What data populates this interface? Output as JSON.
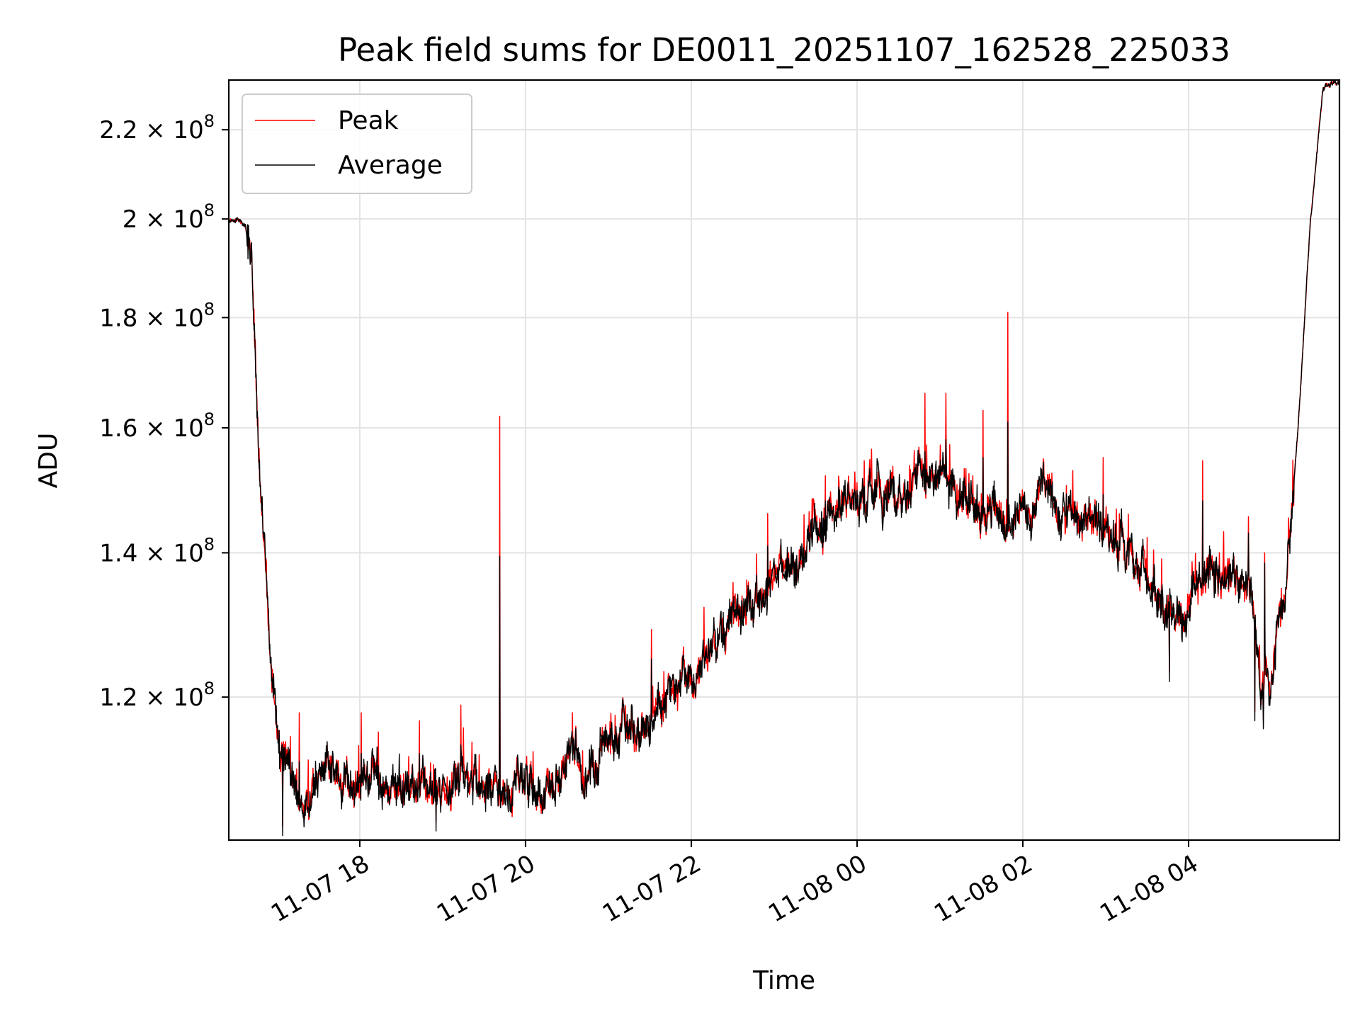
{
  "chart_data": {
    "type": "line",
    "title": "Peak field sums for DE0011_20251107_162528_225033",
    "xlabel": "Time",
    "ylabel": "ADU",
    "yscale": "log",
    "grid": true,
    "legend_position": "upper-left",
    "x_unit": "hours since 11-07 16:25",
    "xlim": [
      0,
      13.4
    ],
    "ylim": [
      103000000,
      232000000
    ],
    "x_ticks": [
      {
        "value": 1.58,
        "label": "11-07 18"
      },
      {
        "value": 3.58,
        "label": "11-07 20"
      },
      {
        "value": 5.58,
        "label": "11-07 22"
      },
      {
        "value": 7.58,
        "label": "11-08 00"
      },
      {
        "value": 9.58,
        "label": "11-08 02"
      },
      {
        "value": 11.58,
        "label": "11-08 04"
      }
    ],
    "y_ticks": [
      {
        "value": 120000000,
        "mantissa": "1.2",
        "exp": "8"
      },
      {
        "value": 140000000,
        "mantissa": "1.4",
        "exp": "8"
      },
      {
        "value": 160000000,
        "mantissa": "1.6",
        "exp": "8"
      },
      {
        "value": 180000000,
        "mantissa": "1.8",
        "exp": "8"
      },
      {
        "value": 200000000,
        "mantissa": "2",
        "exp": "8"
      },
      {
        "value": 220000000,
        "mantissa": "2.2",
        "exp": "8"
      }
    ],
    "times_symbol": "×",
    "base_label": "10",
    "series": [
      {
        "name": "Peak",
        "color": "#ff0000",
        "noise": 0.012,
        "spike_rate": 0.06,
        "spike_size": 0.045
      },
      {
        "name": "Average",
        "color": "#000000",
        "noise": 0.016,
        "spike_rate": 0.02,
        "spike_size": 0.02
      }
    ],
    "trend": {
      "x": [
        0,
        0.2,
        0.28,
        0.35,
        0.42,
        0.5,
        0.6,
        0.8,
        1.0,
        1.4,
        1.8,
        2.2,
        2.6,
        3.0,
        3.4,
        3.8,
        4.2,
        4.6,
        5.0,
        5.4,
        5.8,
        6.2,
        6.6,
        7.0,
        7.4,
        7.8,
        8.2,
        8.6,
        9.0,
        9.4,
        9.8,
        10.2,
        10.6,
        11.0,
        11.2,
        11.4,
        11.6,
        11.8,
        12.0,
        12.2,
        12.35,
        12.45,
        12.55,
        12.65,
        12.75,
        12.9,
        13.05,
        13.2,
        13.4
      ],
      "y": [
        200000000,
        199000000,
        188000000,
        158000000,
        140000000,
        125000000,
        113000000,
        109000000,
        110000000,
        110500000,
        109000000,
        109000000,
        108500000,
        108000000,
        108500000,
        109000000,
        111000000,
        114000000,
        118000000,
        122500000,
        127000000,
        131000000,
        136000000,
        143000000,
        147000000,
        148500000,
        149500000,
        151500000,
        149000000,
        147000000,
        146500000,
        145500000,
        143000000,
        140000000,
        132000000,
        130000000,
        133000000,
        137000000,
        137000000,
        136000000,
        132000000,
        120000000,
        121000000,
        130000000,
        135000000,
        160000000,
        200000000,
        230000000,
        232000000
      ]
    },
    "spikes": [
      {
        "x": 3.27,
        "peak": 162000000,
        "average": 139500000
      },
      {
        "x": 9.4,
        "peak": 181000000,
        "average": 161000000
      },
      {
        "x": 8.4,
        "peak": 166000000,
        "average": 156000000
      },
      {
        "x": 8.65,
        "peak": 166000000,
        "average": 158000000
      },
      {
        "x": 9.1,
        "peak": 163000000,
        "average": 155000000
      },
      {
        "x": 10.55,
        "peak": 155000000,
        "average": 149000000
      },
      {
        "x": 11.75,
        "peak": 154500000,
        "average": 148000000
      },
      {
        "x": 12.3,
        "peak": 145500000,
        "average": 143000000
      },
      {
        "x": 12.5,
        "peak": 140000000,
        "average": 138500000
      },
      {
        "x": 7.2,
        "peak": 152000000,
        "average": 148000000
      },
      {
        "x": 6.5,
        "peak": 146000000,
        "average": 141000000
      },
      {
        "x": 5.1,
        "peak": 129000000,
        "average": 125000000
      },
      {
        "x": 2.3,
        "peak": 117000000,
        "average": 113000000
      },
      {
        "x": 2.8,
        "peak": 119000000,
        "average": 114000000
      },
      {
        "x": 1.6,
        "peak": 118000000,
        "average": 113000000
      },
      {
        "x": 0.85,
        "peak": 118000000,
        "average": 112000000
      }
    ],
    "dips": [
      {
        "x": 0.65,
        "value": 103500000
      },
      {
        "x": 2.5,
        "value": 104000000
      },
      {
        "x": 11.35,
        "value": 122000000
      },
      {
        "x": 12.38,
        "value": 117000000
      },
      {
        "x": 12.48,
        "value": 116000000
      }
    ]
  }
}
